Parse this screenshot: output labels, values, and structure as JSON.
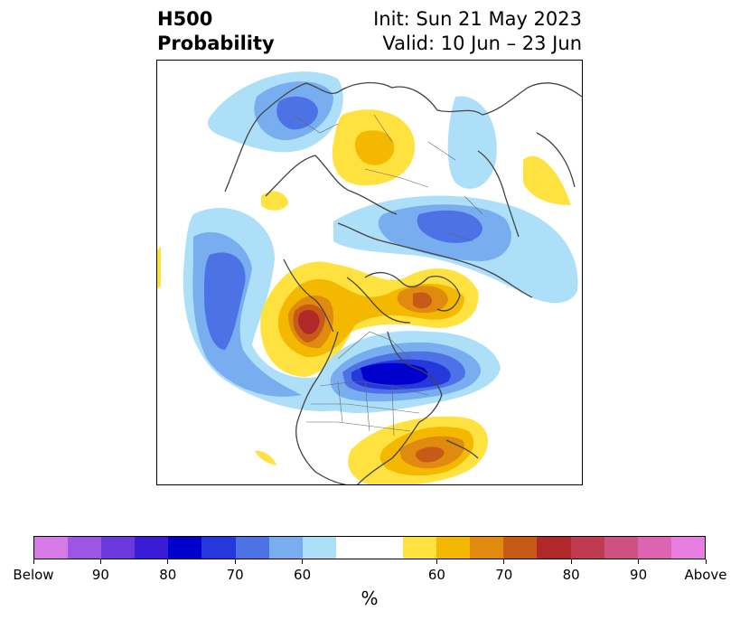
{
  "title": {
    "left_line1": "H500",
    "left_line2": "Probability",
    "right_line1": "Init: Sun 21 May 2023",
    "right_line2": "Valid: 10 Jun – 23 Jun"
  },
  "colorbar": {
    "unit": "%",
    "colors": [
      "#d57ae6",
      "#9d55e3",
      "#6a38dc",
      "#3a1cd6",
      "#0000cc",
      "#2438dc",
      "#4d72e6",
      "#78aef0",
      "#ade0f8",
      "#ffffff",
      "#ffffff",
      "#ffe240",
      "#f5b800",
      "#e08a10",
      "#c85a18",
      "#b02828",
      "#c03a50",
      "#cc5282",
      "#dc64b0",
      "#e87ee0"
    ],
    "tick_labels": [
      "Below",
      "90",
      "80",
      "70",
      "60",
      "60",
      "70",
      "80",
      "90",
      "Above"
    ]
  },
  "map": {
    "projection": "north-polar-stereographic",
    "anomaly_colors": {
      "below_light": "#ade0f8",
      "below_mid": "#78aef0",
      "below_strong": "#4d72e6",
      "below_deep": "#2438dc",
      "below_max": "#0000cc",
      "above_light": "#ffe240",
      "above_mid": "#f5b800",
      "above_strong": "#e08a10",
      "above_deep": "#c85a18",
      "above_max": "#b02828"
    },
    "features": [
      "north-america-coastline",
      "greenland",
      "arctic-archipelago",
      "europe",
      "asia",
      "us-state-borders"
    ]
  }
}
